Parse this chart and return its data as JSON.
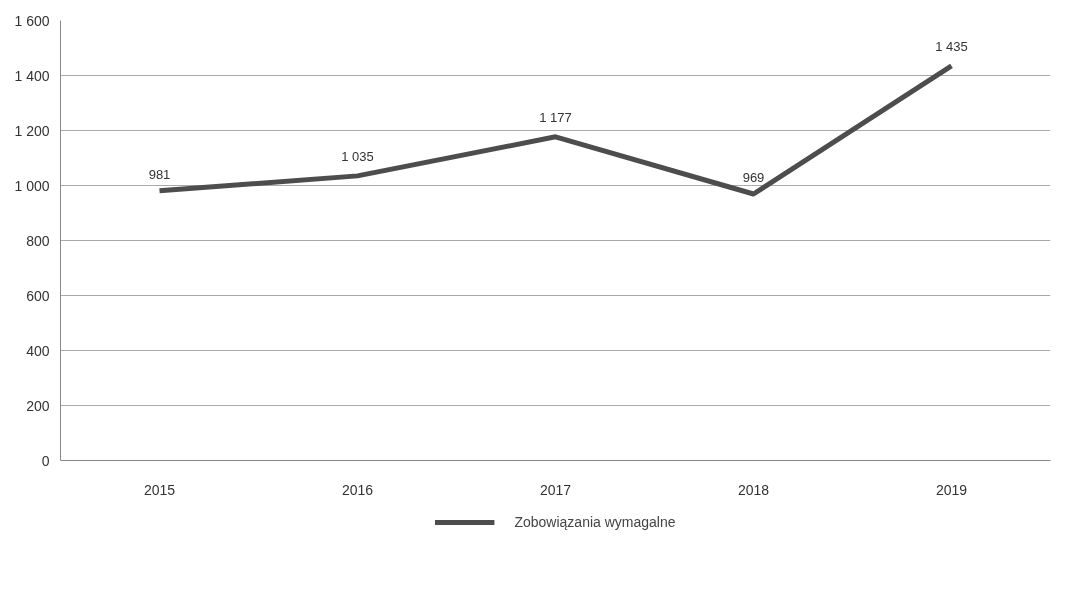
{
  "chart_data": {
    "type": "line",
    "categories": [
      "2015",
      "2016",
      "2017",
      "2018",
      "2019"
    ],
    "series": [
      {
        "name": "Zobowiązania wymagalne",
        "color": "#4d4d4d",
        "values": [
          981,
          1035,
          1177,
          969,
          1435
        ],
        "value_labels": [
          "981",
          "1 035",
          "1 177",
          "969",
          "1 435"
        ]
      }
    ],
    "ylim": [
      0,
      1600
    ],
    "yticks": [
      0,
      200,
      400,
      600,
      800,
      {
        "value": 1000,
        "label": "1 000"
      },
      {
        "value": 1200,
        "label": "1 200"
      },
      {
        "value": 1400,
        "label": "1 400"
      },
      {
        "value": 1600,
        "label": "1 600"
      }
    ],
    "grid": "y",
    "legend": "bottom",
    "marker": "none",
    "line_style": "solid"
  }
}
